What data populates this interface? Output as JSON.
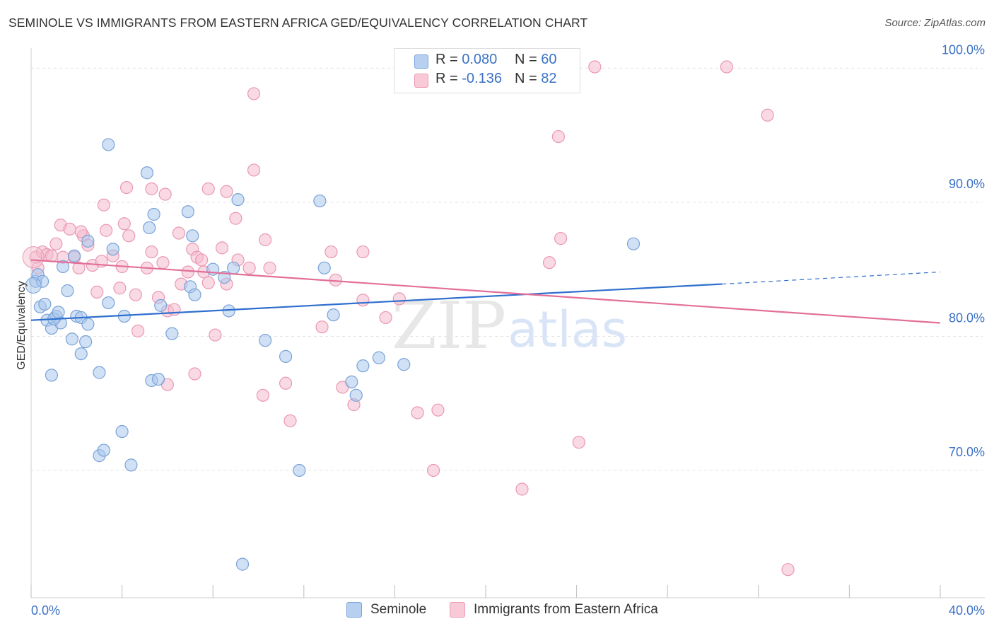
{
  "title": "SEMINOLE VS IMMIGRANTS FROM EASTERN AFRICA GED/EQUIVALENCY CORRELATION CHART",
  "source": "Source: ZipAtlas.com",
  "watermark": {
    "zip": "ZIP",
    "atlas": "atlas"
  },
  "colors": {
    "seminole_fill": "#a9c6ec",
    "seminole_stroke": "#7aa3d8",
    "seminole_line": "#2f6fce",
    "eastafrica_fill": "#f4bccd",
    "eastafrica_stroke": "#eb98b2",
    "eastafrica_line": "#e36f99",
    "tick_label": "#3b72c6"
  },
  "legend_top": [
    {
      "r_label": "R = ",
      "r_value": "0.080",
      "n_label": "N = ",
      "n_value": "60"
    },
    {
      "r_label": "R = ",
      "r_value": "-0.136",
      "n_label": "N = ",
      "n_value": "82"
    }
  ],
  "legend_bottom": [
    "Seminole",
    "Immigrants from Eastern Africa"
  ],
  "chart_data": {
    "type": "scatter",
    "title": "SEMINOLE VS IMMIGRANTS FROM EASTERN AFRICA GED/EQUIVALENCY CORRELATION CHART",
    "xlabel": "",
    "ylabel": "GED/Equivalency",
    "xlim": [
      0,
      40
    ],
    "ylim": [
      60.5,
      101.5
    ],
    "x_tick_labels": [
      "0.0%",
      "40.0%"
    ],
    "y_ticks": [
      70,
      80,
      90,
      100
    ],
    "y_tick_labels": [
      "70.0%",
      "80.0%",
      "90.0%",
      "100.0%"
    ],
    "grid": true,
    "series": [
      {
        "name": "Seminole",
        "r": 0.08,
        "n": 60,
        "trend": {
          "x0": 0,
          "y0": 81.2,
          "x1": 30.4,
          "y1": 83.9,
          "dash_to_x": 40,
          "dash_to_y": 84.8
        },
        "points": [
          [
            0.2,
            84.1
          ],
          [
            0.3,
            84.6
          ],
          [
            0.5,
            84.1
          ],
          [
            0.4,
            82.2
          ],
          [
            0.6,
            82.4
          ],
          [
            0.7,
            81.2
          ],
          [
            0.9,
            80.6
          ],
          [
            1.1,
            81.5
          ],
          [
            1.3,
            81.0
          ],
          [
            1.0,
            81.3
          ],
          [
            1.2,
            81.8
          ],
          [
            1.4,
            85.2
          ],
          [
            1.6,
            83.4
          ],
          [
            1.9,
            86.0
          ],
          [
            2.0,
            81.5
          ],
          [
            2.2,
            81.4
          ],
          [
            2.5,
            80.9
          ],
          [
            1.8,
            79.8
          ],
          [
            2.4,
            79.6
          ],
          [
            2.2,
            78.7
          ],
          [
            0.9,
            77.1
          ],
          [
            3.0,
            77.3
          ],
          [
            3.4,
            82.5
          ],
          [
            3.6,
            86.5
          ],
          [
            4.1,
            81.5
          ],
          [
            2.5,
            87.1
          ],
          [
            3.4,
            94.3
          ],
          [
            5.1,
            92.2
          ],
          [
            5.4,
            89.1
          ],
          [
            5.2,
            88.1
          ],
          [
            6.9,
            89.3
          ],
          [
            7.1,
            87.5
          ],
          [
            7.0,
            83.7
          ],
          [
            7.2,
            83.1
          ],
          [
            5.7,
            82.3
          ],
          [
            6.2,
            80.2
          ],
          [
            5.3,
            76.7
          ],
          [
            5.6,
            76.8
          ],
          [
            8.0,
            85.0
          ],
          [
            8.5,
            84.4
          ],
          [
            8.9,
            85.1
          ],
          [
            8.7,
            81.9
          ],
          [
            9.1,
            90.2
          ],
          [
            10.3,
            79.7
          ],
          [
            11.2,
            78.5
          ],
          [
            12.7,
            90.1
          ],
          [
            12.9,
            85.1
          ],
          [
            13.3,
            81.6
          ],
          [
            14.1,
            76.6
          ],
          [
            14.6,
            77.8
          ],
          [
            15.3,
            78.4
          ],
          [
            14.3,
            75.6
          ],
          [
            16.4,
            77.9
          ],
          [
            3.0,
            71.1
          ],
          [
            3.2,
            71.5
          ],
          [
            4.0,
            72.9
          ],
          [
            4.4,
            70.4
          ],
          [
            11.8,
            70.0
          ],
          [
            9.3,
            63.0
          ],
          [
            26.5,
            86.9
          ]
        ]
      },
      {
        "name": "Immigrants from Eastern Africa",
        "r": -0.136,
        "n": 82,
        "trend": {
          "x0": 0,
          "y0": 85.7,
          "x1": 40,
          "y1": 81.0
        },
        "points": [
          [
            0.2,
            85.9
          ],
          [
            0.3,
            85.1
          ],
          [
            0.5,
            86.3
          ],
          [
            0.7,
            86.1
          ],
          [
            0.9,
            86.0
          ],
          [
            1.1,
            86.9
          ],
          [
            1.3,
            88.3
          ],
          [
            1.4,
            85.9
          ],
          [
            1.7,
            88.0
          ],
          [
            1.9,
            85.9
          ],
          [
            2.1,
            85.1
          ],
          [
            2.3,
            87.5
          ],
          [
            2.5,
            86.8
          ],
          [
            2.7,
            85.3
          ],
          [
            2.9,
            83.3
          ],
          [
            3.1,
            85.6
          ],
          [
            3.3,
            87.9
          ],
          [
            3.6,
            86.0
          ],
          [
            3.9,
            83.6
          ],
          [
            4.1,
            88.4
          ],
          [
            4.3,
            87.5
          ],
          [
            4.6,
            83.1
          ],
          [
            4.7,
            80.4
          ],
          [
            5.1,
            85.1
          ],
          [
            5.3,
            86.3
          ],
          [
            5.6,
            82.9
          ],
          [
            5.8,
            85.5
          ],
          [
            6.0,
            81.9
          ],
          [
            6.3,
            82.0
          ],
          [
            6.6,
            83.9
          ],
          [
            6.9,
            84.8
          ],
          [
            7.1,
            86.5
          ],
          [
            7.3,
            85.9
          ],
          [
            7.6,
            84.8
          ],
          [
            7.8,
            84.0
          ],
          [
            8.1,
            80.1
          ],
          [
            8.4,
            86.6
          ],
          [
            8.6,
            83.9
          ],
          [
            3.2,
            89.8
          ],
          [
            4.2,
            91.1
          ],
          [
            5.3,
            91.0
          ],
          [
            5.9,
            90.6
          ],
          [
            7.8,
            91.0
          ],
          [
            8.6,
            90.8
          ],
          [
            9.0,
            88.8
          ],
          [
            9.6,
            85.1
          ],
          [
            10.3,
            87.2
          ],
          [
            10.5,
            85.1
          ],
          [
            9.8,
            98.1
          ],
          [
            9.8,
            92.4
          ],
          [
            11.4,
            73.7
          ],
          [
            11.2,
            76.5
          ],
          [
            10.2,
            75.6
          ],
          [
            7.2,
            77.2
          ],
          [
            6.0,
            76.4
          ],
          [
            12.8,
            80.7
          ],
          [
            13.2,
            86.3
          ],
          [
            13.4,
            84.2
          ],
          [
            13.7,
            76.2
          ],
          [
            14.2,
            74.9
          ],
          [
            14.6,
            86.3
          ],
          [
            14.6,
            82.7
          ],
          [
            15.6,
            81.4
          ],
          [
            16.2,
            82.8
          ],
          [
            17.0,
            74.3
          ],
          [
            17.7,
            70.0
          ],
          [
            17.9,
            74.5
          ],
          [
            21.6,
            68.6
          ],
          [
            23.2,
            94.9
          ],
          [
            23.3,
            87.3
          ],
          [
            24.1,
            72.1
          ],
          [
            24.8,
            100.1
          ],
          [
            30.6,
            100.1
          ],
          [
            32.4,
            96.5
          ],
          [
            33.3,
            62.6
          ],
          [
            19.8,
            100.1
          ],
          [
            22.8,
            85.5
          ],
          [
            2.2,
            87.8
          ],
          [
            4.0,
            85.2
          ],
          [
            6.5,
            87.7
          ],
          [
            7.5,
            85.7
          ],
          [
            9.1,
            85.7
          ]
        ]
      }
    ]
  }
}
